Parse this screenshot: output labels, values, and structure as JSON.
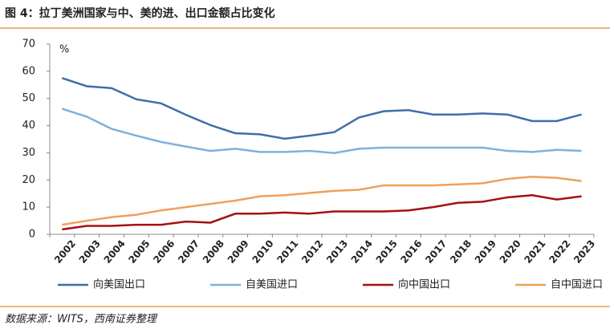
{
  "chart_data": {
    "type": "line",
    "title": "图 4：拉丁美洲国家与中、美的进、出口金额占比变化",
    "y_axis_label": "%",
    "source": "数据来源：WITS，西南证券整理",
    "categories": [
      "2002",
      "2003",
      "2004",
      "2005",
      "2006",
      "2007",
      "2008",
      "2009",
      "2010",
      "2011",
      "2012",
      "2013",
      "2014",
      "2015",
      "2016",
      "2017",
      "2018",
      "2019",
      "2020",
      "2021",
      "2022",
      "2023"
    ],
    "series": [
      {
        "name": "向美国出口",
        "color": "#3f6ea8",
        "values": [
          57.5,
          54.5,
          53.8,
          49.7,
          48.2,
          44,
          40.2,
          37.2,
          36.8,
          35.2,
          36.3,
          37.6,
          43,
          45.3,
          45.7,
          44.1,
          44.1,
          44.5,
          44.1,
          41.7,
          41.7,
          44.1
        ]
      },
      {
        "name": "自美国进口",
        "color": "#7fb0dc",
        "values": [
          46.2,
          43.3,
          38.8,
          36.3,
          34,
          32.3,
          30.7,
          31.5,
          30.3,
          30.3,
          30.7,
          29.9,
          31.5,
          31.9,
          31.9,
          31.9,
          31.9,
          31.9,
          30.7,
          30.3,
          31.1,
          30.7
        ]
      },
      {
        "name": "向中国出口",
        "color": "#a50f15",
        "values": [
          1.8,
          3.1,
          3.1,
          3.5,
          3.5,
          4.7,
          4.3,
          7.6,
          7.6,
          8,
          7.6,
          8.4,
          8.4,
          8.4,
          8.8,
          10,
          11.6,
          12,
          13.6,
          14.4,
          12.8,
          14
        ]
      },
      {
        "name": "自中国进口",
        "color": "#f0a05a",
        "values": [
          3.5,
          5,
          6.3,
          7.2,
          8.8,
          10,
          11.2,
          12.4,
          14,
          14.4,
          15.2,
          16,
          16.4,
          18,
          18,
          18,
          18.4,
          18.8,
          20.4,
          21.2,
          20.8,
          19.6
        ]
      }
    ],
    "ylim": [
      0,
      70
    ],
    "yticks": [
      0,
      10,
      20,
      30,
      40,
      50,
      60,
      70
    ],
    "legend": "bottom"
  }
}
